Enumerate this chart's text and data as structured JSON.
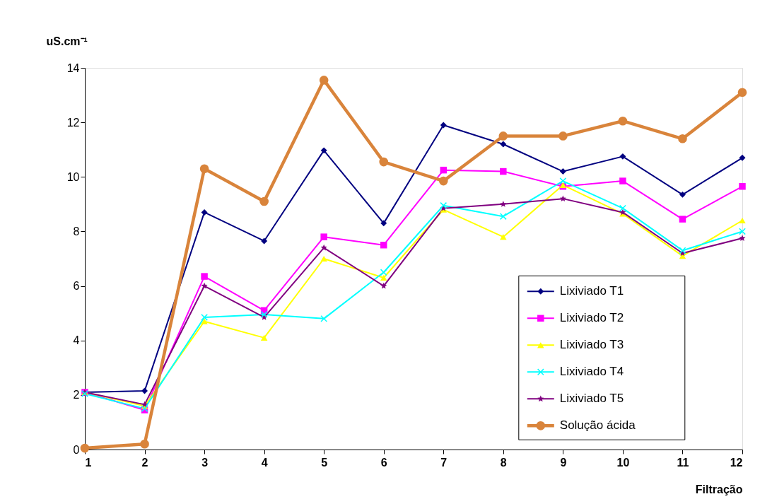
{
  "chart_data": {
    "type": "line",
    "xlabel": "Filtração",
    "ylabel": "uS.cm⁻¹",
    "x": [
      1,
      2,
      3,
      4,
      5,
      6,
      7,
      8,
      9,
      10,
      11,
      12
    ],
    "xlim": [
      1,
      12
    ],
    "xticks": [
      1,
      2,
      3,
      4,
      5,
      6,
      7,
      8,
      9,
      10,
      11,
      12
    ],
    "ylim": [
      0,
      14
    ],
    "yticks": [
      0,
      2,
      4,
      6,
      8,
      10,
      12,
      14
    ],
    "grid": false,
    "legend": "bottom right",
    "line_style": "solid",
    "series": [
      {
        "name": "Lixiviado T1",
        "color": "#000080",
        "marker": "diamond",
        "values": [
          2.1,
          2.15,
          8.7,
          7.65,
          10.97,
          8.3,
          11.9,
          11.2,
          10.2,
          10.75,
          9.35,
          10.7
        ]
      },
      {
        "name": "Lixiviado T2",
        "color": "#ff00ff",
        "marker": "square",
        "values": [
          2.1,
          1.45,
          6.35,
          5.1,
          7.8,
          7.5,
          10.25,
          10.2,
          9.65,
          9.85,
          8.45,
          9.65
        ]
      },
      {
        "name": "Lixiviado T3",
        "color": "#ffff00",
        "marker": "triangle",
        "values": [
          2.1,
          1.6,
          4.7,
          4.1,
          7.0,
          6.3,
          8.8,
          7.8,
          9.7,
          8.65,
          7.1,
          8.4
        ]
      },
      {
        "name": "Lixiviado T4",
        "color": "#00ffff",
        "marker": "cross",
        "values": [
          2.05,
          1.5,
          4.85,
          4.95,
          4.8,
          6.5,
          8.95,
          8.55,
          9.85,
          8.85,
          7.3,
          8.0
        ]
      },
      {
        "name": "Lixiviado T5",
        "color": "#800080",
        "marker": "star",
        "values": [
          2.1,
          1.65,
          6.0,
          4.85,
          7.4,
          6.0,
          8.85,
          9.0,
          9.2,
          8.7,
          7.2,
          7.75
        ]
      },
      {
        "name": "Solução ácida",
        "color": "#d9843b",
        "marker": "circle",
        "values": [
          0.05,
          0.2,
          10.3,
          9.1,
          13.55,
          10.55,
          9.85,
          11.5,
          11.5,
          12.05,
          11.4,
          13.1
        ]
      }
    ]
  }
}
